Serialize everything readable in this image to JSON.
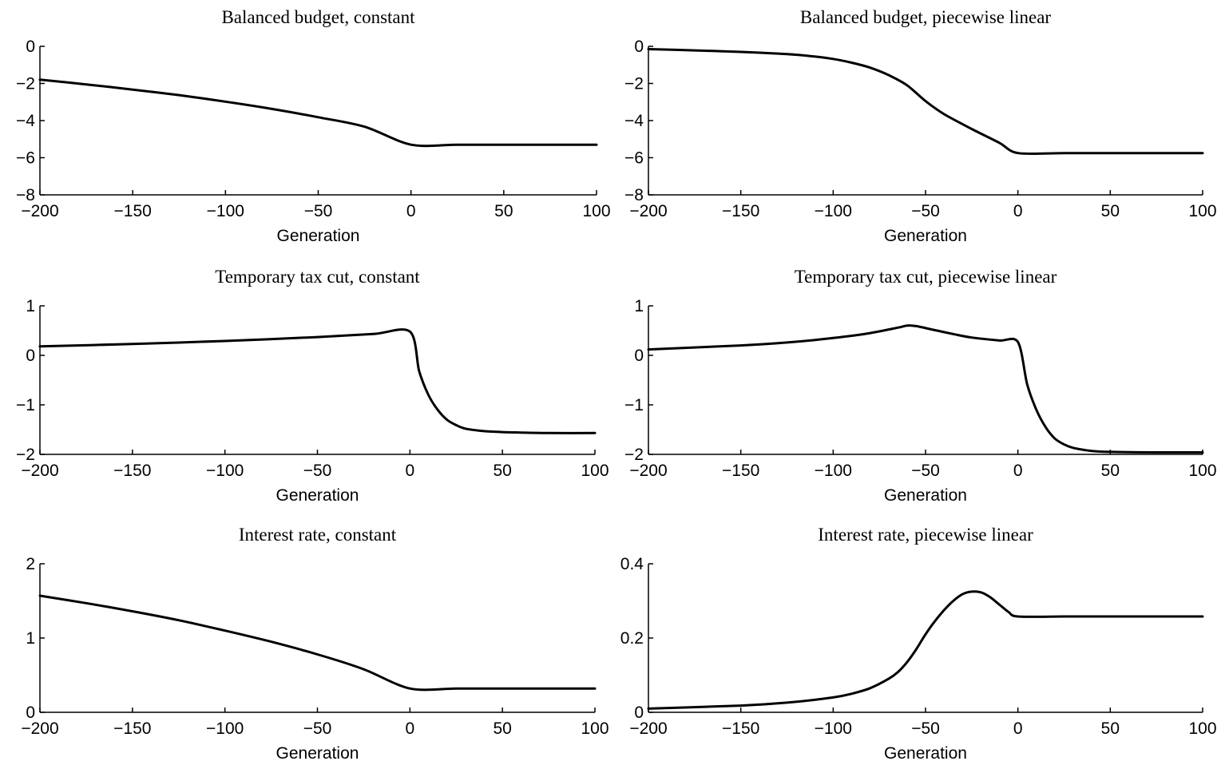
{
  "chart_data": [
    {
      "type": "line",
      "title": "Balanced budget, constant",
      "xlabel": "Generation",
      "ylabel": "",
      "xlim": [
        -200,
        100
      ],
      "ylim": [
        -8,
        0
      ],
      "xticks": [
        -200,
        -150,
        -100,
        -50,
        0,
        50,
        100
      ],
      "yticks": [
        -8,
        -6,
        -4,
        -2,
        0
      ],
      "grid": false,
      "series": [
        {
          "x": [
            -200,
            -175,
            -150,
            -125,
            -100,
            -75,
            -50,
            -25,
            0,
            25,
            50,
            75,
            100
          ],
          "y": [
            -1.8,
            -2.05,
            -2.33,
            -2.63,
            -2.98,
            -3.37,
            -3.82,
            -4.33,
            -5.3,
            -5.3,
            -5.3,
            -5.3,
            -5.3
          ]
        }
      ]
    },
    {
      "type": "line",
      "title": "Balanced budget, piecewise linear",
      "xlabel": "Generation",
      "ylabel": "",
      "xlim": [
        -200,
        100
      ],
      "ylim": [
        -8,
        0
      ],
      "xticks": [
        -200,
        -150,
        -100,
        -50,
        0,
        50,
        100
      ],
      "yticks": [
        -8,
        -6,
        -4,
        -2,
        0
      ],
      "grid": false,
      "series": [
        {
          "x": [
            -200,
            -175,
            -150,
            -125,
            -110,
            -100,
            -90,
            -80,
            -70,
            -60,
            -50,
            -40,
            -25,
            -10,
            0,
            25,
            50,
            75,
            100
          ],
          "y": [
            -0.15,
            -0.22,
            -0.3,
            -0.42,
            -0.55,
            -0.68,
            -0.88,
            -1.15,
            -1.55,
            -2.1,
            -2.95,
            -3.65,
            -4.45,
            -5.2,
            -5.75,
            -5.75,
            -5.75,
            -5.75,
            -5.75
          ]
        }
      ]
    },
    {
      "type": "line",
      "title": "Temporary tax cut, constant",
      "xlabel": "Generation",
      "ylabel": "",
      "xlim": [
        -200,
        100
      ],
      "ylim": [
        -2,
        1
      ],
      "xticks": [
        -200,
        -150,
        -100,
        -50,
        0,
        50,
        100
      ],
      "yticks": [
        -2,
        -1,
        0,
        1
      ],
      "grid": false,
      "series": [
        {
          "x": [
            -200,
            -150,
            -100,
            -50,
            -20,
            0,
            5,
            10,
            15,
            20,
            25,
            30,
            40,
            50,
            60,
            75,
            100
          ],
          "y": [
            0.18,
            0.23,
            0.29,
            0.37,
            0.43,
            0.48,
            -0.32,
            -0.8,
            -1.1,
            -1.3,
            -1.41,
            -1.48,
            -1.53,
            -1.55,
            -1.56,
            -1.57,
            -1.57
          ]
        }
      ]
    },
    {
      "type": "line",
      "title": "Temporary tax cut, piecewise linear",
      "xlabel": "Generation",
      "ylabel": "",
      "xlim": [
        -200,
        100
      ],
      "ylim": [
        -2,
        1
      ],
      "xticks": [
        -200,
        -150,
        -100,
        -50,
        0,
        50,
        100
      ],
      "yticks": [
        -2,
        -1,
        0,
        1
      ],
      "grid": false,
      "series": [
        {
          "x": [
            -200,
            -150,
            -125,
            -100,
            -80,
            -65,
            -60,
            -55,
            -45,
            -35,
            -25,
            -10,
            0,
            5,
            10,
            15,
            20,
            25,
            30,
            40,
            50,
            75,
            100
          ],
          "y": [
            0.12,
            0.2,
            0.26,
            0.35,
            0.45,
            0.56,
            0.6,
            0.59,
            0.51,
            0.43,
            0.36,
            0.3,
            0.27,
            -0.58,
            -1.1,
            -1.45,
            -1.68,
            -1.8,
            -1.87,
            -1.93,
            -1.95,
            -1.96,
            -1.96
          ]
        }
      ]
    },
    {
      "type": "line",
      "title": "Interest rate, constant",
      "xlabel": "Generation",
      "ylabel": "",
      "xlim": [
        -200,
        100
      ],
      "ylim": [
        0,
        2
      ],
      "xticks": [
        -200,
        -150,
        -100,
        -50,
        0,
        50,
        100
      ],
      "yticks": [
        0,
        1,
        2
      ],
      "grid": false,
      "series": [
        {
          "x": [
            -200,
            -175,
            -150,
            -125,
            -100,
            -75,
            -50,
            -25,
            0,
            25,
            50,
            75,
            100
          ],
          "y": [
            1.57,
            1.47,
            1.36,
            1.24,
            1.1,
            0.95,
            0.78,
            0.58,
            0.32,
            0.32,
            0.32,
            0.32,
            0.32
          ]
        }
      ]
    },
    {
      "type": "line",
      "title": "Interest rate, piecewise linear",
      "xlabel": "Generation",
      "ylabel": "",
      "xlim": [
        -200,
        100
      ],
      "ylim": [
        0,
        0.4
      ],
      "xticks": [
        -200,
        -150,
        -100,
        -50,
        0,
        50,
        100
      ],
      "yticks": [
        0,
        0.2,
        0.4
      ],
      "grid": false,
      "series": [
        {
          "x": [
            -200,
            -150,
            -125,
            -100,
            -90,
            -80,
            -70,
            -65,
            -60,
            -55,
            -50,
            -45,
            -40,
            -35,
            -30,
            -25,
            -20,
            -15,
            -10,
            -5,
            0,
            25,
            50,
            75,
            100
          ],
          "y": [
            0.01,
            0.018,
            0.026,
            0.04,
            0.05,
            0.065,
            0.09,
            0.108,
            0.135,
            0.17,
            0.21,
            0.245,
            0.275,
            0.3,
            0.318,
            0.325,
            0.323,
            0.31,
            0.29,
            0.27,
            0.258,
            0.258,
            0.258,
            0.258,
            0.258
          ]
        }
      ]
    }
  ]
}
